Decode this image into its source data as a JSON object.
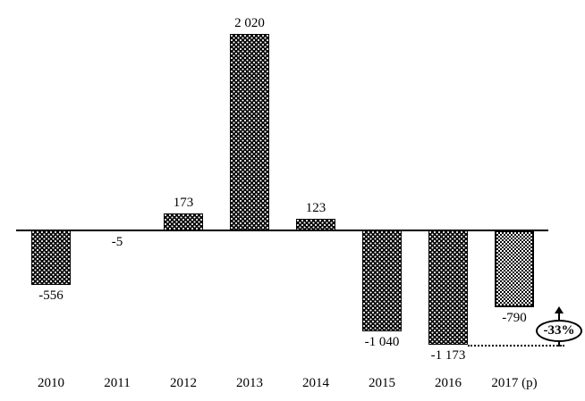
{
  "chart_data": {
    "type": "bar",
    "title": "",
    "xlabel": "",
    "ylabel": "",
    "categories": [
      "2010",
      "2011",
      "2012",
      "2013",
      "2014",
      "2015",
      "2016",
      "2017 (p)"
    ],
    "values": [
      -556,
      -5,
      173,
      2020,
      123,
      -1040,
      -1173,
      -790
    ],
    "value_labels": [
      "-556",
      "-5",
      "173",
      "2 020",
      "123",
      "-1 040",
      "-1 173",
      "-790"
    ],
    "bar_patterns": [
      "dark-dotted",
      "dark-dotted",
      "dark-dotted",
      "dark-dotted",
      "dark-dotted",
      "dark-dotted",
      "dark-dotted",
      "light-checker"
    ],
    "ylim": [
      -1300,
      2100
    ],
    "grid": false,
    "legend": null,
    "annotation": {
      "text": "-33%",
      "shape": "ellipse-with-up-arrow",
      "from_value": -1173,
      "to_value": -790
    },
    "colors": {
      "foreground": "#000000",
      "background": "#ffffff"
    }
  }
}
